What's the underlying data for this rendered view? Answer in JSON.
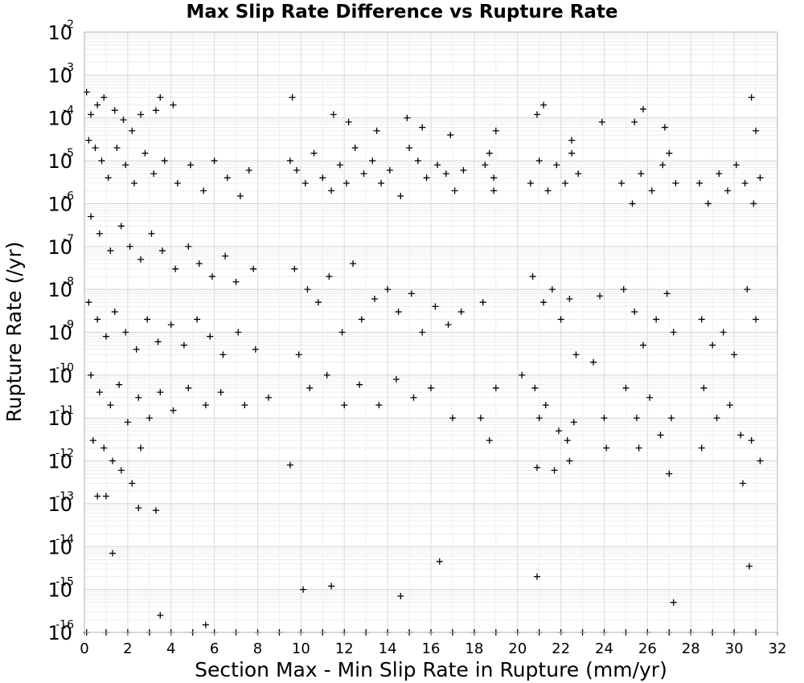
{
  "chart_data": {
    "type": "scatter",
    "title": "Max Slip Rate Difference vs Rupture Rate",
    "xlabel": "Section Max - Min Slip Rate in Rupture (mm/yr)",
    "ylabel": "Rupture Rate (/yr)",
    "xlim": [
      0,
      32
    ],
    "ylim": [
      1e-16,
      0.01
    ],
    "yscale": "log",
    "grid": true,
    "marker": "+",
    "marker_color": "#000000",
    "x_ticks": [
      "0",
      "2",
      "4",
      "6",
      "8",
      "10",
      "12",
      "14",
      "16",
      "18",
      "20",
      "22",
      "24",
      "26",
      "28",
      "30",
      "32"
    ],
    "y_ticks": [
      {
        "base": "10",
        "exp": "-16"
      },
      {
        "base": "10",
        "exp": "-15"
      },
      {
        "base": "10",
        "exp": "-14"
      },
      {
        "base": "10",
        "exp": "-13"
      },
      {
        "base": "10",
        "exp": "-12"
      },
      {
        "base": "10",
        "exp": "-11"
      },
      {
        "base": "10",
        "exp": "-10"
      },
      {
        "base": "10",
        "exp": "-9"
      },
      {
        "base": "10",
        "exp": "-8"
      },
      {
        "base": "10",
        "exp": "-7"
      },
      {
        "base": "10",
        "exp": "-6"
      },
      {
        "base": "10",
        "exp": "-5"
      },
      {
        "base": "10",
        "exp": "-4"
      },
      {
        "base": "10",
        "exp": "-3"
      },
      {
        "base": "10",
        "exp": "-2"
      }
    ],
    "points": [
      [
        0.1,
        0.0004
      ],
      [
        0.3,
        0.00012
      ],
      [
        0.6,
        0.0002
      ],
      [
        0.9,
        0.0003
      ],
      [
        1.4,
        0.00015
      ],
      [
        2.2,
        5e-05
      ],
      [
        3.5,
        0.0003
      ],
      [
        1.8,
        9e-05
      ],
      [
        2.6,
        0.00012
      ],
      [
        3.3,
        0.00015
      ],
      [
        4.1,
        0.0002
      ],
      [
        0.2,
        3e-05
      ],
      [
        0.5,
        2e-05
      ],
      [
        0.8,
        1e-05
      ],
      [
        1.1,
        4e-06
      ],
      [
        1.5,
        2e-05
      ],
      [
        1.9,
        8e-06
      ],
      [
        2.3,
        3e-06
      ],
      [
        2.8,
        1.5e-05
      ],
      [
        3.2,
        5e-06
      ],
      [
        3.7,
        1e-05
      ],
      [
        4.3,
        3e-06
      ],
      [
        4.9,
        8e-06
      ],
      [
        5.5,
        2e-06
      ],
      [
        6.0,
        1e-05
      ],
      [
        6.6,
        4e-06
      ],
      [
        7.2,
        1.5e-06
      ],
      [
        7.6,
        6e-06
      ],
      [
        0.3,
        5e-07
      ],
      [
        0.7,
        2e-07
      ],
      [
        1.2,
        8e-08
      ],
      [
        1.7,
        3e-07
      ],
      [
        2.1,
        1e-07
      ],
      [
        2.6,
        5e-08
      ],
      [
        3.1,
        2e-07
      ],
      [
        3.6,
        8e-08
      ],
      [
        4.2,
        3e-08
      ],
      [
        4.8,
        1e-07
      ],
      [
        5.3,
        4e-08
      ],
      [
        5.9,
        2e-08
      ],
      [
        6.5,
        6e-08
      ],
      [
        7.0,
        1.5e-08
      ],
      [
        7.8,
        3e-08
      ],
      [
        0.2,
        5e-09
      ],
      [
        0.6,
        2e-09
      ],
      [
        1.0,
        8e-10
      ],
      [
        1.4,
        3e-09
      ],
      [
        1.9,
        1e-09
      ],
      [
        2.4,
        4e-10
      ],
      [
        2.9,
        2e-09
      ],
      [
        3.4,
        6e-10
      ],
      [
        4.0,
        1.5e-09
      ],
      [
        4.6,
        5e-10
      ],
      [
        5.2,
        2e-09
      ],
      [
        5.8,
        8e-10
      ],
      [
        6.4,
        3e-10
      ],
      [
        7.1,
        1e-09
      ],
      [
        7.9,
        4e-10
      ],
      [
        0.3,
        1e-10
      ],
      [
        0.7,
        4e-11
      ],
      [
        1.2,
        2e-11
      ],
      [
        1.6,
        6e-11
      ],
      [
        2.0,
        8e-12
      ],
      [
        2.5,
        3e-11
      ],
      [
        3.0,
        1e-11
      ],
      [
        3.5,
        4e-11
      ],
      [
        4.1,
        1.5e-11
      ],
      [
        4.8,
        5e-11
      ],
      [
        5.6,
        2e-11
      ],
      [
        6.3,
        4e-11
      ],
      [
        7.4,
        2e-11
      ],
      [
        8.5,
        3e-11
      ],
      [
        0.4,
        3e-12
      ],
      [
        0.9,
        2e-12
      ],
      [
        1.3,
        1e-12
      ],
      [
        1.7,
        6e-13
      ],
      [
        2.2,
        3e-13
      ],
      [
        2.6,
        2e-12
      ],
      [
        3.3,
        7e-14
      ],
      [
        0.6,
        1.5e-13
      ],
      [
        1.0,
        1.5e-13
      ],
      [
        1.3,
        7e-15
      ],
      [
        2.5,
        8e-14
      ],
      [
        3.5,
        2.5e-16
      ],
      [
        5.6,
        1.5e-16
      ],
      [
        9.5,
        1e-05
      ],
      [
        9.8,
        6e-06
      ],
      [
        10.2,
        3e-06
      ],
      [
        10.6,
        1.5e-05
      ],
      [
        11.0,
        4e-06
      ],
      [
        11.4,
        2e-06
      ],
      [
        11.8,
        8e-06
      ],
      [
        12.1,
        3e-06
      ],
      [
        12.5,
        2e-05
      ],
      [
        12.9,
        5e-06
      ],
      [
        13.3,
        1e-05
      ],
      [
        13.7,
        3e-06
      ],
      [
        14.1,
        6e-06
      ],
      [
        14.6,
        1.5e-06
      ],
      [
        15.0,
        2e-05
      ],
      [
        15.4,
        1e-05
      ],
      [
        15.8,
        4e-06
      ],
      [
        16.3,
        8e-06
      ],
      [
        16.7,
        5e-06
      ],
      [
        17.1,
        2e-06
      ],
      [
        17.5,
        6e-06
      ],
      [
        9.6,
        0.0003
      ],
      [
        11.5,
        0.00012
      ],
      [
        12.2,
        8e-05
      ],
      [
        13.5,
        5e-05
      ],
      [
        14.9,
        0.0001
      ],
      [
        15.6,
        6e-05
      ],
      [
        16.9,
        4e-05
      ],
      [
        9.7,
        3e-08
      ],
      [
        10.3,
        1e-08
      ],
      [
        10.8,
        5e-09
      ],
      [
        11.3,
        2e-08
      ],
      [
        11.9,
        1e-09
      ],
      [
        12.4,
        4e-08
      ],
      [
        12.8,
        2e-09
      ],
      [
        13.4,
        6e-09
      ],
      [
        14.0,
        1e-08
      ],
      [
        14.5,
        3e-09
      ],
      [
        15.1,
        8e-09
      ],
      [
        15.6,
        1e-09
      ],
      [
        16.2,
        4e-09
      ],
      [
        16.8,
        1.5e-09
      ],
      [
        17.4,
        3e-09
      ],
      [
        9.9,
        3e-10
      ],
      [
        10.4,
        5e-11
      ],
      [
        11.2,
        1e-10
      ],
      [
        12.0,
        2e-11
      ],
      [
        12.7,
        6e-11
      ],
      [
        13.6,
        2e-11
      ],
      [
        14.4,
        8e-11
      ],
      [
        15.2,
        3e-11
      ],
      [
        16.0,
        5e-11
      ],
      [
        17.0,
        1e-11
      ],
      [
        18.3,
        1e-11
      ],
      [
        9.5,
        8e-13
      ],
      [
        10.1,
        1e-15
      ],
      [
        11.4,
        1.2e-15
      ],
      [
        14.6,
        7e-16
      ],
      [
        16.4,
        4.5e-15
      ],
      [
        18.5,
        8e-06
      ],
      [
        18.9,
        4e-06
      ],
      [
        19.0,
        5e-05
      ],
      [
        18.7,
        1.5e-05
      ],
      [
        18.9,
        2e-06
      ],
      [
        18.4,
        5e-09
      ],
      [
        19.0,
        5e-11
      ],
      [
        18.7,
        3e-12
      ],
      [
        20.2,
        1e-10
      ],
      [
        20.6,
        3e-06
      ],
      [
        21.0,
        1e-05
      ],
      [
        21.4,
        2e-06
      ],
      [
        21.8,
        8e-06
      ],
      [
        22.2,
        3e-06
      ],
      [
        22.5,
        1.5e-05
      ],
      [
        22.8,
        5e-06
      ],
      [
        20.7,
        2e-08
      ],
      [
        21.2,
        5e-09
      ],
      [
        21.6,
        1e-08
      ],
      [
        22.0,
        2e-09
      ],
      [
        22.4,
        6e-09
      ],
      [
        22.7,
        3e-10
      ],
      [
        20.8,
        5e-11
      ],
      [
        21.3,
        2e-11
      ],
      [
        21.9,
        5e-12
      ],
      [
        22.3,
        3e-12
      ],
      [
        22.6,
        8e-12
      ],
      [
        21.0,
        1e-11
      ],
      [
        20.9,
        0.00012
      ],
      [
        21.2,
        0.0002
      ],
      [
        22.5,
        3e-05
      ],
      [
        20.9,
        7e-13
      ],
      [
        21.7,
        6e-13
      ],
      [
        22.4,
        1e-12
      ],
      [
        20.9,
        2e-15
      ],
      [
        23.5,
        2e-10
      ],
      [
        23.9,
        8e-05
      ],
      [
        24.0,
        1e-11
      ],
      [
        23.8,
        7e-09
      ],
      [
        24.1,
        2e-12
      ],
      [
        24.8,
        3e-06
      ],
      [
        25.3,
        1e-06
      ],
      [
        25.7,
        5e-06
      ],
      [
        26.2,
        2e-06
      ],
      [
        26.7,
        8e-06
      ],
      [
        27.0,
        1.5e-05
      ],
      [
        27.3,
        3e-06
      ],
      [
        24.9,
        1e-08
      ],
      [
        25.4,
        3e-09
      ],
      [
        25.8,
        5e-10
      ],
      [
        26.4,
        2e-09
      ],
      [
        26.9,
        8e-09
      ],
      [
        27.2,
        1e-09
      ],
      [
        25.0,
        5e-11
      ],
      [
        25.5,
        1e-11
      ],
      [
        26.1,
        3e-11
      ],
      [
        26.6,
        4e-12
      ],
      [
        27.1,
        1e-11
      ],
      [
        27.0,
        5e-13
      ],
      [
        25.4,
        8e-05
      ],
      [
        25.8,
        0.00016
      ],
      [
        26.8,
        6e-05
      ],
      [
        25.6,
        2e-12
      ],
      [
        27.2,
        5e-16
      ],
      [
        28.4,
        3e-06
      ],
      [
        28.8,
        1e-06
      ],
      [
        29.3,
        5e-06
      ],
      [
        29.7,
        2e-06
      ],
      [
        30.1,
        8e-06
      ],
      [
        30.5,
        3e-06
      ],
      [
        30.9,
        1e-06
      ],
      [
        31.2,
        4e-06
      ],
      [
        28.5,
        2e-09
      ],
      [
        29.0,
        5e-10
      ],
      [
        29.5,
        1e-09
      ],
      [
        30.0,
        3e-10
      ],
      [
        30.6,
        1e-08
      ],
      [
        31.0,
        2e-09
      ],
      [
        28.6,
        5e-11
      ],
      [
        29.2,
        1e-11
      ],
      [
        29.8,
        2e-11
      ],
      [
        30.3,
        4e-12
      ],
      [
        30.8,
        3e-12
      ],
      [
        31.2,
        1e-12
      ],
      [
        30.8,
        0.0003
      ],
      [
        31.0,
        5e-05
      ],
      [
        28.5,
        2e-12
      ],
      [
        30.4,
        3e-13
      ],
      [
        30.7,
        3.5e-15
      ],
      [
        0.1,
        1e-16
      ],
      [
        1.0,
        1e-16
      ],
      [
        2.0,
        1e-16
      ],
      [
        3.0,
        1e-16
      ],
      [
        4.0,
        1e-16
      ],
      [
        5.0,
        1e-16
      ],
      [
        6.0,
        1e-16
      ],
      [
        7.0,
        1e-16
      ],
      [
        8.0,
        1e-16
      ],
      [
        9.0,
        1e-16
      ],
      [
        10.0,
        1e-16
      ],
      [
        11.0,
        1e-16
      ],
      [
        12.0,
        1e-16
      ],
      [
        13.0,
        1e-16
      ],
      [
        14.0,
        1e-16
      ],
      [
        15.0,
        1e-16
      ],
      [
        16.0,
        1e-16
      ],
      [
        17.0,
        1e-16
      ],
      [
        18.0,
        1e-16
      ],
      [
        19.0,
        1e-16
      ],
      [
        20.0,
        1e-16
      ],
      [
        21.0,
        1e-16
      ],
      [
        22.0,
        1e-16
      ],
      [
        23.0,
        1e-16
      ],
      [
        24.0,
        1e-16
      ],
      [
        25.0,
        1e-16
      ],
      [
        26.0,
        1e-16
      ],
      [
        27.0,
        1e-16
      ],
      [
        28.0,
        1e-16
      ],
      [
        29.0,
        1e-16
      ],
      [
        30.0,
        1e-16
      ],
      [
        31.0,
        1e-16
      ]
    ]
  }
}
